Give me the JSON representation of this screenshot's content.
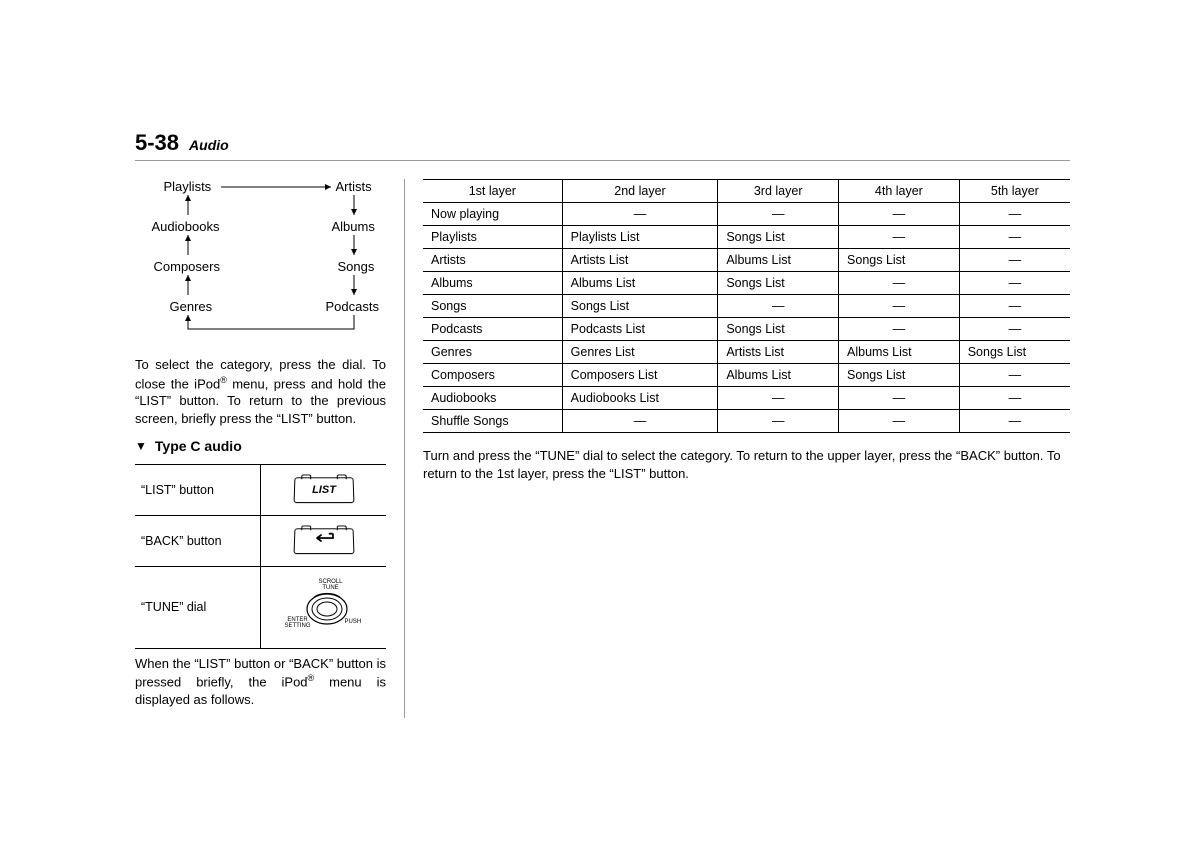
{
  "header": {
    "page_number": "5-38",
    "section": "Audio"
  },
  "flow": {
    "left": [
      "Playlists",
      "Audiobooks",
      "Composers",
      "Genres"
    ],
    "right": [
      "Artists",
      "Albums",
      "Songs",
      "Podcasts"
    ]
  },
  "para1_before_sup": "To select the category, press the dial. To close the iPod",
  "para1_after_sup": " menu, press and hold the “LIST” button. To return to the previous screen, briefly press the “LIST” button.",
  "subheading": "Type C audio",
  "controls": {
    "rows": [
      {
        "label": "“LIST” button",
        "icon": "list"
      },
      {
        "label": "“BACK” button",
        "icon": "back"
      },
      {
        "label": "“TUNE” dial",
        "icon": "dial"
      }
    ],
    "list_text": "LIST",
    "dial_labels": {
      "top": "SCROLL\nTUNE",
      "left": "ENTER\nSETTING",
      "right": "PUSH"
    }
  },
  "para2_before_sup": "When the “LIST” button or “BACK” button is pressed briefly, the iPod",
  "para2_after_sup": " menu is displayed as follows.",
  "layer_table": {
    "headers": [
      "1st layer",
      "2nd layer",
      "3rd layer",
      "4th layer",
      "5th layer"
    ],
    "rows": [
      [
        "Now playing",
        "—",
        "—",
        "—",
        "—"
      ],
      [
        "Playlists",
        "Playlists List",
        "Songs List",
        "—",
        "—"
      ],
      [
        "Artists",
        "Artists List",
        "Albums List",
        "Songs List",
        "—"
      ],
      [
        "Albums",
        "Albums List",
        "Songs List",
        "—",
        "—"
      ],
      [
        "Songs",
        "Songs List",
        "—",
        "—",
        "—"
      ],
      [
        "Podcasts",
        "Podcasts List",
        "Songs List",
        "—",
        "—"
      ],
      [
        "Genres",
        "Genres List",
        "Artists List",
        "Albums List",
        "Songs List"
      ],
      [
        "Composers",
        "Composers List",
        "Albums List",
        "Songs List",
        "—"
      ],
      [
        "Audiobooks",
        "Audiobooks List",
        "—",
        "—",
        "—"
      ],
      [
        "Shuffle Songs",
        "—",
        "—",
        "—",
        "—"
      ]
    ]
  },
  "para3": "Turn and press the “TUNE” dial to select the category. To return to the upper layer, press the “BACK” button. To return to the 1st layer, press the “LIST” button.",
  "reg_mark": "®",
  "colors": {
    "text": "#000000",
    "rule": "#9a9a9a",
    "bg": "#ffffff"
  }
}
